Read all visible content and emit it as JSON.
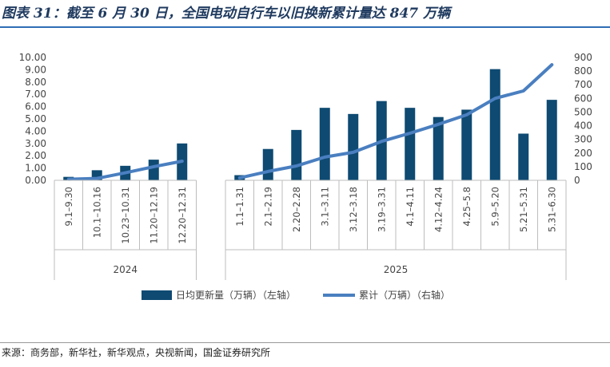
{
  "title": "图表 31：截至 6 月 30 日，全国电动自行车以旧换新累计量达 847 万辆",
  "source": "来源：商务部，新华社，新华观点，央视新闻，国金证券研究所",
  "colors": {
    "bar": "#0e4a72",
    "line": "#4a7fc0",
    "title": "#1f3a5f",
    "rule": "#2e6db4"
  },
  "chart_data": {
    "type": "bar",
    "groups": [
      {
        "label": "2024",
        "start": 0,
        "count": 5
      },
      {
        "label": "2025",
        "start": 5,
        "count": 12
      }
    ],
    "categories": [
      "9.1–9.30",
      "10.1–10.16",
      "10.23–10.31",
      "11.20–12.19",
      "12.20–12.31",
      "1.1–1.31",
      "2.1–2.19",
      "2.20–2.28",
      "3.1–3.11",
      "3.12–3.18",
      "3.19–3.31",
      "4.1–4.11",
      "4.12–4.24",
      "4.25–5.8",
      "5.9–5.20",
      "5.21–5.31",
      "5.31–6.30"
    ],
    "series": [
      {
        "name": "日均更新量（万辆）（左轴）",
        "type": "bar",
        "axis": "left",
        "values": [
          0.28,
          0.82,
          1.18,
          1.68,
          3.0,
          0.42,
          2.55,
          4.1,
          5.9,
          5.4,
          6.45,
          5.9,
          5.15,
          5.75,
          9.05,
          3.8,
          6.55
        ]
      },
      {
        "name": "累计（万辆）（右轴）",
        "type": "line",
        "axis": "right",
        "values": [
          8,
          14,
          55,
          100,
          140,
          18,
          65,
          105,
          170,
          205,
          285,
          345,
          410,
          480,
          600,
          655,
          847
        ]
      }
    ],
    "y_left": {
      "min": 0,
      "max": 10,
      "ticks": [
        "0.00",
        "1.00",
        "2.00",
        "3.00",
        "4.00",
        "5.00",
        "6.00",
        "7.00",
        "8.00",
        "9.00",
        "10.00"
      ]
    },
    "y_right": {
      "min": 0,
      "max": 900,
      "ticks": [
        "0",
        "100",
        "200",
        "300",
        "400",
        "500",
        "600",
        "700",
        "800",
        "900"
      ]
    },
    "grid": false,
    "legend": "bottom"
  }
}
